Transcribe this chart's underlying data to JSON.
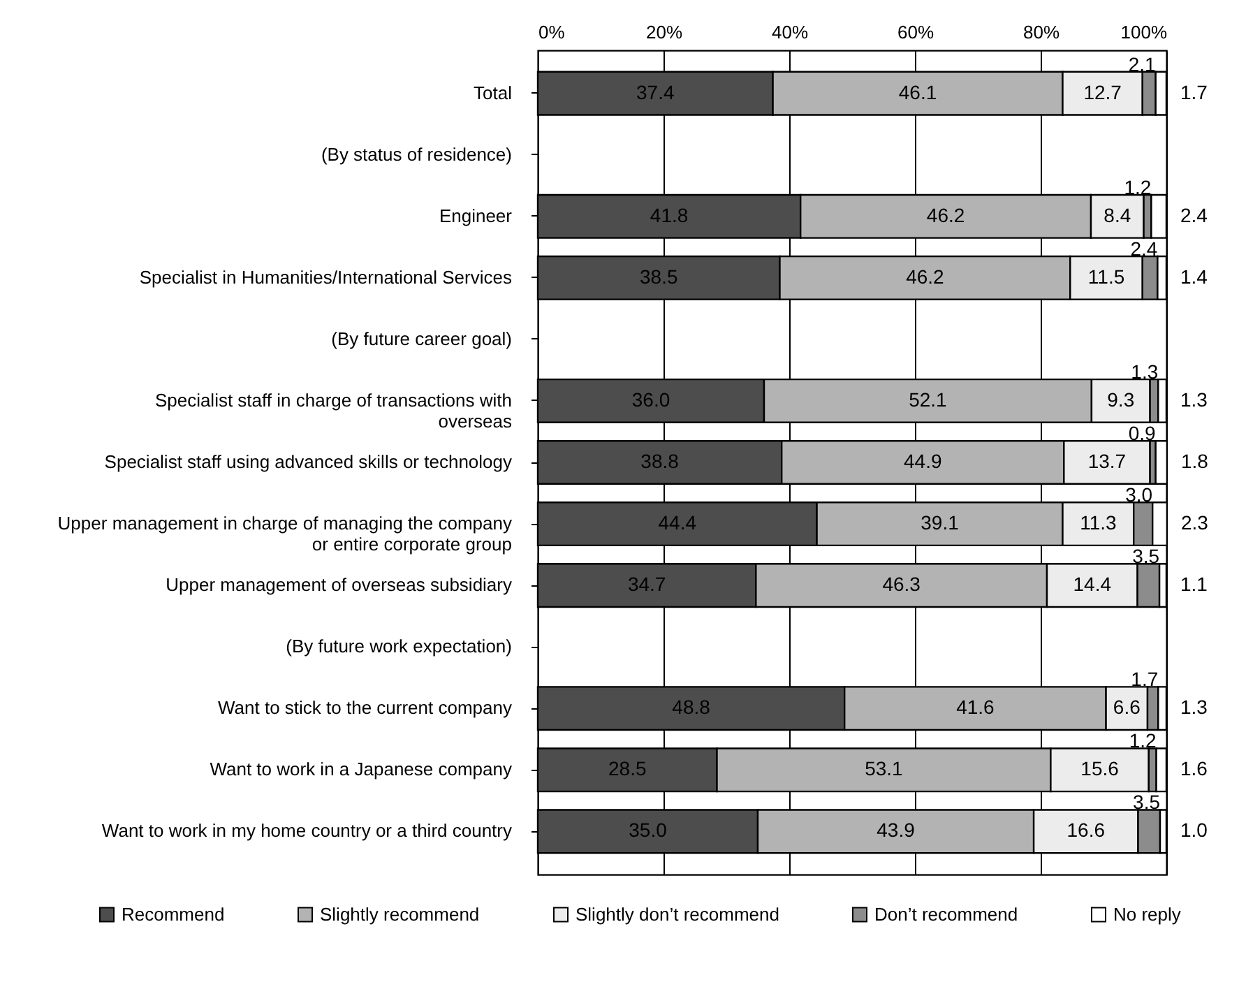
{
  "chart_data": {
    "type": "bar",
    "orientation": "horizontal",
    "stacked": true,
    "grid": "x",
    "legend": "bottom",
    "categories": [
      "Total",
      "(By status of residence)",
      "Engineer",
      "Specialist in Humanities/International Services",
      "(By future career goal)",
      "Specialist staff in charge of transactions with overseas",
      "Specialist staff using advanced skills or technology",
      "Upper management in charge of managing the company or entire corporate group",
      "Upper management of overseas subsidiary",
      "(By future work expectation)",
      "Want to stick to the current company",
      "Want to work in a Japanese company",
      "Want to work in my home country or a third country"
    ],
    "xlim": [
      0,
      100
    ],
    "xticks": [
      {
        "value": 0,
        "label": "0%"
      },
      {
        "value": 20,
        "label": "20%"
      },
      {
        "value": 40,
        "label": "40%"
      },
      {
        "value": 60,
        "label": "60%"
      },
      {
        "value": 80,
        "label": "80%"
      },
      {
        "value": 100,
        "label": "100%"
      }
    ],
    "series": [
      {
        "name": "Recommend",
        "color": "#4d4d4d",
        "values": [
          37.4,
          null,
          41.8,
          38.5,
          null,
          36.0,
          38.8,
          44.4,
          34.7,
          null,
          48.8,
          28.5,
          35.0
        ],
        "value_labels": [
          "37.4",
          null,
          "41.8",
          "38.5",
          null,
          "36.0",
          "38.8",
          "44.4",
          "34.7",
          null,
          "48.8",
          "28.5",
          "35.0"
        ]
      },
      {
        "name": "Slightly recommend",
        "color": "#b3b3b3",
        "values": [
          46.1,
          null,
          46.2,
          46.2,
          null,
          52.1,
          44.9,
          39.1,
          46.3,
          null,
          41.6,
          53.1,
          43.9
        ],
        "value_labels": [
          "46.1",
          null,
          "46.2",
          "46.2",
          null,
          "52.1",
          "44.9",
          "39.1",
          "46.3",
          null,
          "41.6",
          "53.1",
          "43.9"
        ]
      },
      {
        "name": "Slightly don’t recommend",
        "color": "#ececec",
        "values": [
          12.7,
          null,
          8.4,
          11.5,
          null,
          9.3,
          13.7,
          11.3,
          14.4,
          null,
          6.6,
          15.6,
          16.6
        ],
        "value_labels": [
          "12.7",
          null,
          "8.4",
          "11.5",
          null,
          "9.3",
          "13.7",
          "11.3",
          "14.4",
          null,
          "6.6",
          "15.6",
          "16.6"
        ]
      },
      {
        "name": "Don’t recommend",
        "color": "#8c8c8c",
        "values": [
          2.1,
          null,
          1.2,
          2.4,
          null,
          1.3,
          0.9,
          3.0,
          3.5,
          null,
          1.7,
          1.2,
          3.5
        ],
        "value_labels": [
          "2.1",
          null,
          "1.2",
          "2.4",
          null,
          "1.3",
          "0.9",
          "3.0",
          "3.5",
          null,
          "1.7",
          "1.2",
          "3.5"
        ]
      },
      {
        "name": "No reply",
        "color": "#ffffff",
        "values": [
          1.7,
          null,
          2.4,
          1.4,
          null,
          1.3,
          1.8,
          2.3,
          1.1,
          null,
          1.3,
          1.6,
          1.0
        ],
        "value_labels": [
          "1.7",
          null,
          "2.4",
          "1.4",
          null,
          "1.3",
          "1.8",
          "2.3",
          "1.1",
          null,
          "1.3",
          "1.6",
          "1.0"
        ]
      }
    ]
  }
}
